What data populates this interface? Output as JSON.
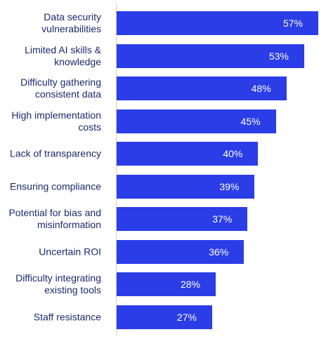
{
  "chart_data": {
    "type": "bar",
    "orientation": "horizontal",
    "categories": [
      "Data security\nvulnerabilities",
      "Limited AI skills &\nknowledge",
      "Difficulty gathering\nconsistent data",
      "High implementation\ncosts",
      "Lack of transparency",
      "Ensuring compliance",
      "Potential for bias and\nmisinformation",
      "Uncertain ROI",
      "Difficulty integrating\nexisting tools",
      "Staff resistance"
    ],
    "values": [
      57,
      53,
      48,
      45,
      40,
      39,
      37,
      36,
      28,
      27
    ],
    "value_labels": [
      "57%",
      "53%",
      "48%",
      "45%",
      "40%",
      "39%",
      "37%",
      "36%",
      "28%",
      "27%"
    ],
    "color": "#2b3de6"
  }
}
